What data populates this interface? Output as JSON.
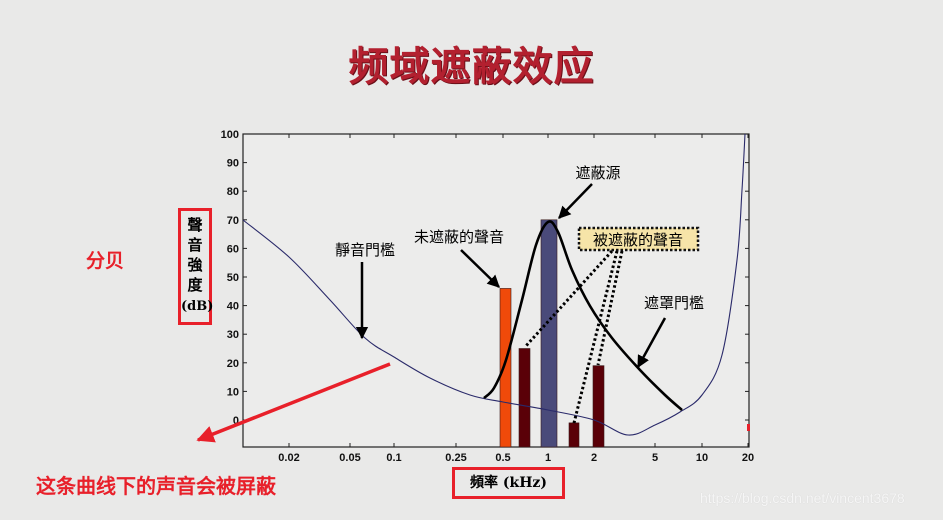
{
  "title": "频域遮蔽效应",
  "annotations": {
    "decibel_note": "分贝",
    "curve_note": "这条曲线下的声音会被屏蔽",
    "watermark": "https://blog.csdn.net/vincent3678"
  },
  "chart_data": {
    "type": "bar",
    "title": "频域遮蔽效应",
    "xlabel": "頻率 (kHz)",
    "ylabel": "聲音強度 (dB)",
    "x_scale": "log",
    "xlim": [
      0.01,
      20
    ],
    "ylim": [
      -10,
      100
    ],
    "x_ticks": [
      "0.02",
      "0.05",
      "0.1",
      "0.25",
      "0.5",
      "1",
      "2",
      "5",
      "10",
      "20"
    ],
    "y_ticks": [
      "0",
      "10",
      "20",
      "30",
      "40",
      "50",
      "60",
      "70",
      "80",
      "90",
      "100"
    ],
    "grid": false,
    "bars": [
      {
        "freq_khz": 0.5,
        "level_db": 46,
        "color": "#f04a0a",
        "label": "未遮蔽的聲音"
      },
      {
        "freq_khz": 0.7,
        "level_db": 25,
        "color": "#5a0008",
        "label": "被遮蔽的聲音"
      },
      {
        "freq_khz": 1.0,
        "level_db": 70,
        "color": "#4a4a7a",
        "label": "遮蔽源"
      },
      {
        "freq_khz": 1.5,
        "level_db": -1,
        "color": "#5a0008",
        "label": "被遮蔽的聲音"
      },
      {
        "freq_khz": 2.0,
        "level_db": 19,
        "color": "#5a0008",
        "label": "被遮蔽的聲音"
      }
    ],
    "series": [
      {
        "name": "靜音門檻",
        "type": "line",
        "color": "#2a2a6a",
        "x": [
          0.01,
          0.02,
          0.05,
          0.1,
          0.25,
          0.5,
          1,
          2,
          3.5,
          5,
          7,
          10,
          15,
          20
        ],
        "y": [
          70,
          57,
          38,
          21,
          11,
          6,
          3,
          1,
          -5,
          -2,
          3,
          10,
          40,
          100
        ]
      },
      {
        "name": "遮罩門檻",
        "type": "line",
        "color": "#000000",
        "x": [
          0.45,
          0.55,
          0.7,
          0.85,
          1.0,
          1.3,
          1.7,
          2.2,
          3,
          4.5,
          7
        ],
        "y": [
          10,
          22,
          45,
          62,
          68,
          58,
          42,
          30,
          20,
          10,
          4
        ]
      }
    ],
    "labels": {
      "quiet_threshold": "靜音門檻",
      "unmasked_sound": "未遮蔽的聲音",
      "masker": "遮蔽源",
      "masked_sound": "被遮蔽的聲音",
      "masking_threshold": "遮罩門檻"
    }
  }
}
